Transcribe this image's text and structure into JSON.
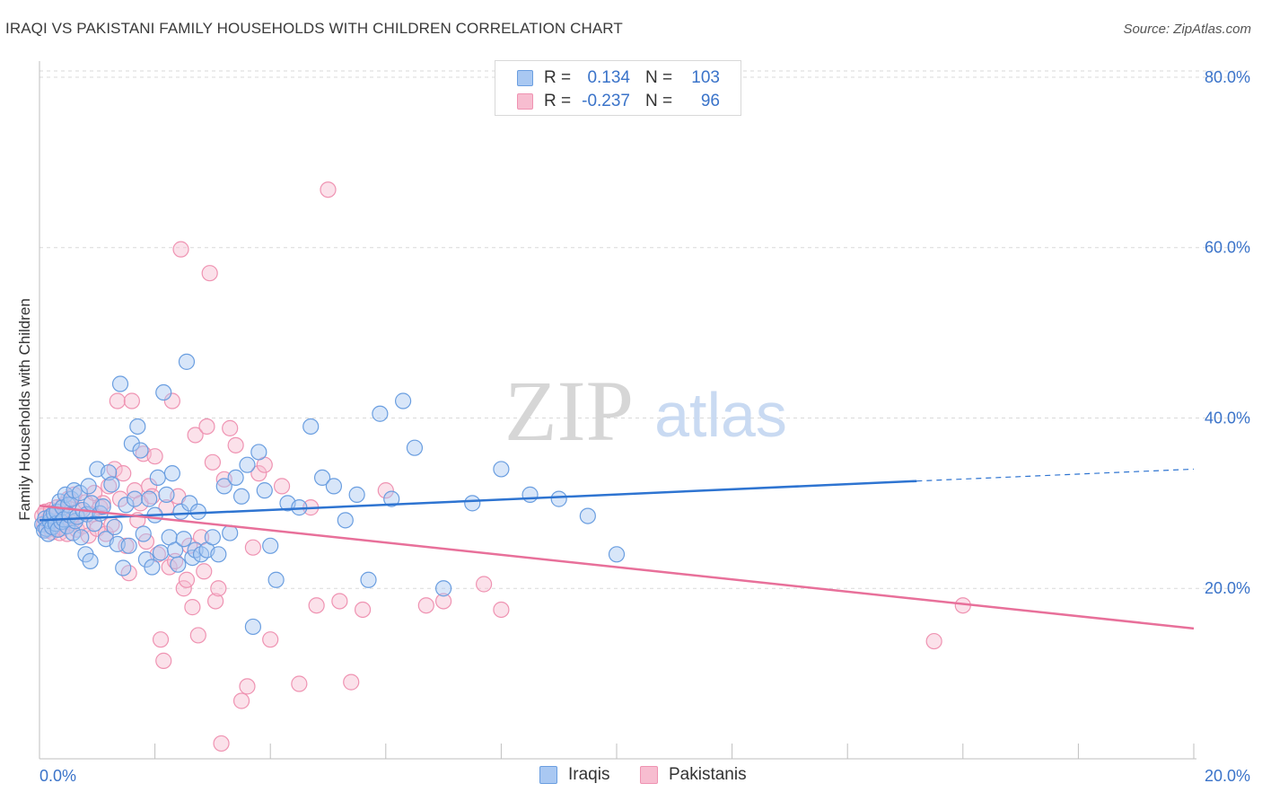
{
  "title": "IRAQI VS PAKISTANI FAMILY HOUSEHOLDS WITH CHILDREN CORRELATION CHART",
  "source": "Source: ZipAtlas.com",
  "watermark": {
    "zip": "ZIP",
    "atlas": "atlas"
  },
  "legend_top": [
    {
      "r_label": "R =",
      "r_value": "0.134",
      "n_label": "N =",
      "n_value": "103"
    },
    {
      "r_label": "R =",
      "r_value": "-0.237",
      "n_label": "N =",
      "n_value": "96"
    }
  ],
  "legend_bottom": [
    "Iraqis",
    "Pakistanis"
  ],
  "colors": {
    "iraqi_fill": "#a9c8f2",
    "iraqi_stroke": "#6a9ee0",
    "iraqi_line": "#2e74d1",
    "pakistani_fill": "#f7bdd0",
    "pakistani_stroke": "#ef93b2",
    "pakistani_line": "#e8709a",
    "grid": "#d9d9d9",
    "tick_text": "#3a73c9"
  },
  "chart_data": {
    "type": "scatter",
    "title": "IRAQI VS PAKISTANI FAMILY HOUSEHOLDS WITH CHILDREN CORRELATION CHART",
    "xlabel": "",
    "ylabel": "Family Households with Children",
    "xlim": [
      0,
      20
    ],
    "ylim": [
      0,
      82
    ],
    "x_tick_labels": [
      "0.0%",
      "20.0%"
    ],
    "y_ticks": [
      20,
      40,
      60,
      80
    ],
    "y_tick_labels": [
      "20.0%",
      "40.0%",
      "60.0%",
      "80.0%"
    ],
    "grid": true,
    "legend_position": "top-center",
    "series": [
      {
        "name": "Iraqis",
        "r": 0.134,
        "n": 103,
        "trend": {
          "x": [
            0,
            15.2
          ],
          "y": [
            28.0,
            32.6
          ],
          "dashed_to": [
            20,
            34.0
          ]
        },
        "points": [
          [
            0.05,
            27.5
          ],
          [
            0.08,
            26.8
          ],
          [
            0.1,
            28.2
          ],
          [
            0.12,
            27.0
          ],
          [
            0.15,
            26.4
          ],
          [
            0.18,
            27.9
          ],
          [
            0.2,
            28.5
          ],
          [
            0.22,
            27.2
          ],
          [
            0.25,
            28.8
          ],
          [
            0.28,
            27.6
          ],
          [
            0.3,
            29.0
          ],
          [
            0.32,
            26.9
          ],
          [
            0.35,
            30.2
          ],
          [
            0.38,
            27.8
          ],
          [
            0.4,
            29.5
          ],
          [
            0.42,
            28.1
          ],
          [
            0.45,
            31.0
          ],
          [
            0.48,
            27.3
          ],
          [
            0.5,
            29.8
          ],
          [
            0.52,
            28.6
          ],
          [
            0.55,
            30.5
          ],
          [
            0.58,
            26.5
          ],
          [
            0.6,
            31.5
          ],
          [
            0.62,
            27.9
          ],
          [
            0.65,
            28.4
          ],
          [
            0.7,
            31.2
          ],
          [
            0.72,
            26.0
          ],
          [
            0.75,
            29.2
          ],
          [
            0.8,
            24.0
          ],
          [
            0.82,
            28.7
          ],
          [
            0.85,
            32.0
          ],
          [
            0.88,
            23.2
          ],
          [
            0.9,
            30.0
          ],
          [
            0.95,
            27.6
          ],
          [
            1.0,
            34.0
          ],
          [
            1.05,
            28.8
          ],
          [
            1.1,
            29.6
          ],
          [
            1.15,
            25.8
          ],
          [
            1.2,
            33.6
          ],
          [
            1.25,
            32.2
          ],
          [
            1.3,
            27.2
          ],
          [
            1.35,
            25.2
          ],
          [
            1.4,
            44.0
          ],
          [
            1.45,
            22.4
          ],
          [
            1.5,
            29.8
          ],
          [
            1.55,
            25.0
          ],
          [
            1.6,
            37.0
          ],
          [
            1.65,
            30.5
          ],
          [
            1.7,
            39.0
          ],
          [
            1.75,
            36.2
          ],
          [
            1.8,
            26.4
          ],
          [
            1.85,
            23.4
          ],
          [
            1.9,
            30.5
          ],
          [
            1.95,
            22.5
          ],
          [
            2.0,
            28.6
          ],
          [
            2.05,
            33.0
          ],
          [
            2.1,
            24.2
          ],
          [
            2.15,
            43.0
          ],
          [
            2.2,
            31.0
          ],
          [
            2.25,
            26.0
          ],
          [
            2.3,
            33.5
          ],
          [
            2.35,
            24.5
          ],
          [
            2.4,
            22.8
          ],
          [
            2.45,
            29.0
          ],
          [
            2.5,
            25.8
          ],
          [
            2.55,
            46.6
          ],
          [
            2.6,
            30.0
          ],
          [
            2.65,
            23.6
          ],
          [
            2.7,
            24.5
          ],
          [
            2.75,
            29.0
          ],
          [
            2.8,
            24.0
          ],
          [
            2.9,
            24.5
          ],
          [
            3.0,
            26.0
          ],
          [
            3.1,
            24.0
          ],
          [
            3.2,
            32.0
          ],
          [
            3.3,
            26.5
          ],
          [
            3.4,
            33.0
          ],
          [
            3.5,
            30.8
          ],
          [
            3.6,
            34.5
          ],
          [
            3.7,
            15.5
          ],
          [
            3.8,
            36.0
          ],
          [
            3.9,
            31.5
          ],
          [
            4.0,
            25.0
          ],
          [
            4.1,
            21.0
          ],
          [
            4.3,
            30.0
          ],
          [
            4.5,
            29.5
          ],
          [
            4.7,
            39.0
          ],
          [
            4.9,
            33.0
          ],
          [
            5.1,
            32.0
          ],
          [
            5.3,
            28.0
          ],
          [
            5.5,
            31.0
          ],
          [
            5.7,
            21.0
          ],
          [
            5.9,
            40.5
          ],
          [
            6.1,
            30.5
          ],
          [
            6.3,
            42.0
          ],
          [
            6.5,
            36.5
          ],
          [
            7.0,
            20.0
          ],
          [
            7.5,
            30.0
          ],
          [
            8.0,
            34.0
          ],
          [
            8.5,
            31.0
          ],
          [
            9.0,
            30.5
          ],
          [
            9.5,
            28.5
          ],
          [
            10.0,
            24.0
          ]
        ]
      },
      {
        "name": "Pakistanis",
        "r": -0.237,
        "n": 96,
        "trend": {
          "x": [
            0,
            20
          ],
          "y": [
            29.7,
            15.3
          ]
        },
        "points": [
          [
            0.05,
            28.5
          ],
          [
            0.08,
            27.5
          ],
          [
            0.1,
            29.0
          ],
          [
            0.12,
            26.8
          ],
          [
            0.15,
            28.0
          ],
          [
            0.18,
            27.4
          ],
          [
            0.2,
            29.2
          ],
          [
            0.22,
            26.6
          ],
          [
            0.25,
            28.6
          ],
          [
            0.28,
            27.0
          ],
          [
            0.3,
            29.5
          ],
          [
            0.32,
            27.9
          ],
          [
            0.35,
            26.5
          ],
          [
            0.38,
            28.2
          ],
          [
            0.4,
            27.1
          ],
          [
            0.42,
            29.8
          ],
          [
            0.45,
            28.0
          ],
          [
            0.48,
            26.4
          ],
          [
            0.5,
            30.5
          ],
          [
            0.55,
            27.7
          ],
          [
            0.6,
            31.0
          ],
          [
            0.65,
            26.9
          ],
          [
            0.7,
            29.2
          ],
          [
            0.75,
            27.3
          ],
          [
            0.8,
            30.1
          ],
          [
            0.85,
            26.2
          ],
          [
            0.9,
            28.7
          ],
          [
            0.95,
            31.2
          ],
          [
            1.0,
            27.0
          ],
          [
            1.05,
            29.5
          ],
          [
            1.1,
            30.0
          ],
          [
            1.15,
            26.4
          ],
          [
            1.2,
            32.0
          ],
          [
            1.25,
            27.5
          ],
          [
            1.3,
            34.0
          ],
          [
            1.35,
            42.0
          ],
          [
            1.4,
            30.5
          ],
          [
            1.45,
            33.5
          ],
          [
            1.5,
            25.0
          ],
          [
            1.55,
            21.8
          ],
          [
            1.6,
            42.0
          ],
          [
            1.65,
            31.5
          ],
          [
            1.7,
            28.0
          ],
          [
            1.75,
            30.0
          ],
          [
            1.8,
            35.8
          ],
          [
            1.85,
            25.5
          ],
          [
            1.9,
            32.0
          ],
          [
            1.95,
            30.8
          ],
          [
            2.0,
            35.5
          ],
          [
            2.05,
            24.0
          ],
          [
            2.1,
            14.0
          ],
          [
            2.15,
            11.5
          ],
          [
            2.2,
            29.5
          ],
          [
            2.25,
            22.5
          ],
          [
            2.3,
            42.0
          ],
          [
            2.35,
            23.2
          ],
          [
            2.4,
            30.8
          ],
          [
            2.45,
            59.8
          ],
          [
            2.5,
            20.0
          ],
          [
            2.55,
            21.0
          ],
          [
            2.6,
            25.0
          ],
          [
            2.65,
            17.8
          ],
          [
            2.7,
            38.0
          ],
          [
            2.75,
            14.5
          ],
          [
            2.8,
            26.0
          ],
          [
            2.85,
            22.0
          ],
          [
            2.9,
            39.0
          ],
          [
            2.95,
            57.0
          ],
          [
            3.0,
            34.8
          ],
          [
            3.05,
            18.5
          ],
          [
            3.1,
            20.0
          ],
          [
            3.15,
            1.8
          ],
          [
            3.2,
            32.8
          ],
          [
            3.3,
            38.8
          ],
          [
            3.4,
            36.8
          ],
          [
            3.5,
            6.8
          ],
          [
            3.6,
            8.5
          ],
          [
            3.7,
            24.8
          ],
          [
            3.8,
            33.5
          ],
          [
            3.9,
            34.5
          ],
          [
            4.0,
            14.0
          ],
          [
            4.2,
            32.0
          ],
          [
            4.5,
            8.8
          ],
          [
            4.7,
            29.5
          ],
          [
            4.8,
            18.0
          ],
          [
            5.0,
            66.8
          ],
          [
            5.2,
            18.5
          ],
          [
            5.4,
            9.0
          ],
          [
            5.6,
            17.5
          ],
          [
            6.0,
            31.5
          ],
          [
            7.0,
            18.5
          ],
          [
            8.0,
            17.5
          ],
          [
            15.5,
            13.8
          ],
          [
            16.0,
            18.0
          ],
          [
            6.7,
            18.0
          ],
          [
            7.7,
            20.5
          ]
        ]
      }
    ]
  }
}
